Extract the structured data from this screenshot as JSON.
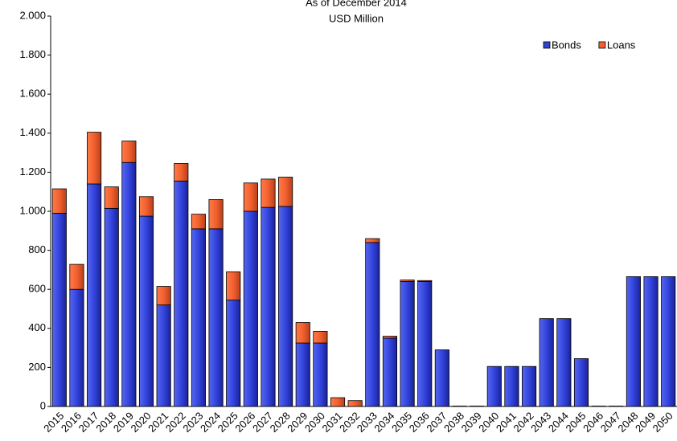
{
  "chart_data": {
    "type": "stacked_bar",
    "title": "As of December 2014",
    "subtitle": "USD Million",
    "categories": [
      "2015",
      "2016",
      "2017",
      "2018",
      "2019",
      "2020",
      "2021",
      "2022",
      "2023",
      "2024",
      "2025",
      "2026",
      "2027",
      "2028",
      "2029",
      "2030",
      "2031",
      "2032",
      "2033",
      "2034",
      "2035",
      "2036",
      "2037",
      "2038",
      "2039",
      "2040",
      "2041",
      "2042",
      "2043",
      "2044",
      "2045",
      "2046",
      "2047",
      "2048",
      "2049",
      "2050"
    ],
    "series": [
      {
        "name": "Bonds",
        "color": "#3344cc",
        "values": [
          990,
          600,
          1140,
          1015,
          1250,
          975,
          520,
          1155,
          910,
          910,
          545,
          1000,
          1020,
          1025,
          325,
          325,
          0,
          0,
          840,
          350,
          640,
          640,
          290,
          2,
          2,
          205,
          205,
          205,
          450,
          450,
          245,
          2,
          2,
          665,
          665,
          665
        ]
      },
      {
        "name": "Loans",
        "color": "#f2602e",
        "values": [
          125,
          128,
          265,
          110,
          110,
          100,
          95,
          90,
          75,
          150,
          145,
          145,
          145,
          150,
          105,
          60,
          45,
          30,
          20,
          10,
          8,
          5,
          0,
          0,
          0,
          0,
          0,
          0,
          0,
          0,
          0,
          0,
          0,
          0,
          0,
          0
        ]
      }
    ],
    "ylim": [
      0,
      2000
    ],
    "yticks": [
      0,
      200,
      400,
      600,
      800,
      {
        "value": 1000,
        "label": "1.000"
      },
      {
        "value": 1200,
        "label": "1.200"
      },
      {
        "value": 1400,
        "label": "1.400"
      },
      {
        "value": 1600,
        "label": "1.600"
      },
      {
        "value": 1800,
        "label": "1.800"
      },
      {
        "value": 2000,
        "label": "2.000"
      }
    ],
    "legend": "top-right"
  }
}
